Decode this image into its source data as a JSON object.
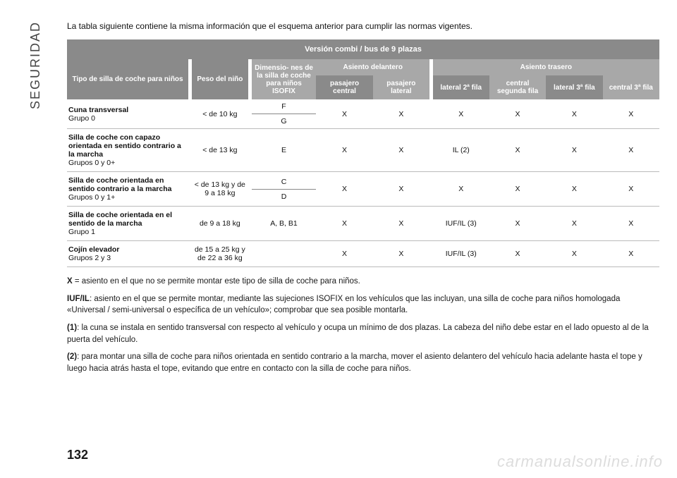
{
  "sidebar": {
    "label": "SEGURIDAD"
  },
  "intro": "La tabla siguiente contiene la misma información que el esquema anterior para cumplir las normas vigentes.",
  "table": {
    "title": "Versión combi / bus de 9 plazas",
    "headers": {
      "tipo": "Tipo de silla de coche para niños",
      "peso": "Peso del niño",
      "dim": "Dimensio- nes de la silla de coche para niños ISOFIX",
      "asiento_del": "Asiento delantero",
      "asiento_tras": "Asiento trasero",
      "pas_central": "pasajero central",
      "pas_lateral": "pasajero lateral",
      "lat_2": "lateral 2ª fila",
      "cen_seg": "central segunda fila",
      "lat_3": "lateral 3ª fila",
      "cen_3": "central 3ª fila"
    },
    "rows": [
      {
        "tipo_b": "Cuna transversal",
        "tipo_r": "Grupo 0",
        "peso": "< de 10 kg",
        "dim_top": "F",
        "dim_bot": "G",
        "v": [
          "X",
          "X",
          "X",
          "X",
          "X",
          "X"
        ]
      },
      {
        "tipo_b": "Silla de coche con capazo orientada en sentido contrario a la marcha",
        "tipo_r": " Grupos 0 y 0+",
        "peso": "< de 13 kg",
        "dim": "E",
        "v": [
          "X",
          "X",
          "IL (2)",
          "X",
          "X",
          "X"
        ]
      },
      {
        "tipo_b": "Silla de coche orientada en sentido contrario a la marcha",
        "tipo_r": " Grupos 0 y 1+",
        "peso": "< de 13 kg y de 9 a 18 kg",
        "dim_top": "C",
        "dim_bot": "D",
        "v": [
          "X",
          "X",
          "X",
          "X",
          "X",
          "X"
        ]
      },
      {
        "tipo_b": "Silla de coche orientada en el sentido de la marcha",
        "tipo_r": " Grupo 1",
        "peso": "de 9 a 18 kg",
        "dim": "A, B, B1",
        "v": [
          "X",
          "X",
          "IUF/IL (3)",
          "X",
          "X",
          "X"
        ]
      },
      {
        "tipo_b": "Cojín elevador",
        "tipo_r": "Grupos 2 y 3",
        "peso": "de 15 a 25 kg y de 22 a 36 kg",
        "dim": "",
        "v": [
          "X",
          "X",
          "IUF/IL (3)",
          "X",
          "X",
          "X"
        ]
      }
    ]
  },
  "notes": {
    "n1_b": "X",
    "n1": " = asiento en el que no se permite montar este tipo de silla de coche para niños.",
    "n2_b": "IUF/IL",
    "n2": ": asiento en el que se permite montar, mediante las sujeciones ISOFIX en los vehículos que las incluyan, una silla de coche para niños homologada «Universal / semi-universal o específica de un vehículo»; comprobar que sea posible montarla.",
    "n3_b": "(1)",
    "n3": ": la cuna se instala en sentido transversal con respecto al vehículo y ocupa un mínimo de dos plazas. La cabeza del niño debe estar en el lado opuesto al de la puerta del vehículo.",
    "n4_b": "(2)",
    "n4": ": para montar una silla de coche para niños orientada en sentido contrario a la marcha, mover el asiento delantero del vehículo hacia adelante hasta el tope y luego hacia atrás hasta el tope, evitando que entre en contacto con la silla de coche para niños."
  },
  "page_number": "132",
  "watermark": "carmanualsonline.info"
}
